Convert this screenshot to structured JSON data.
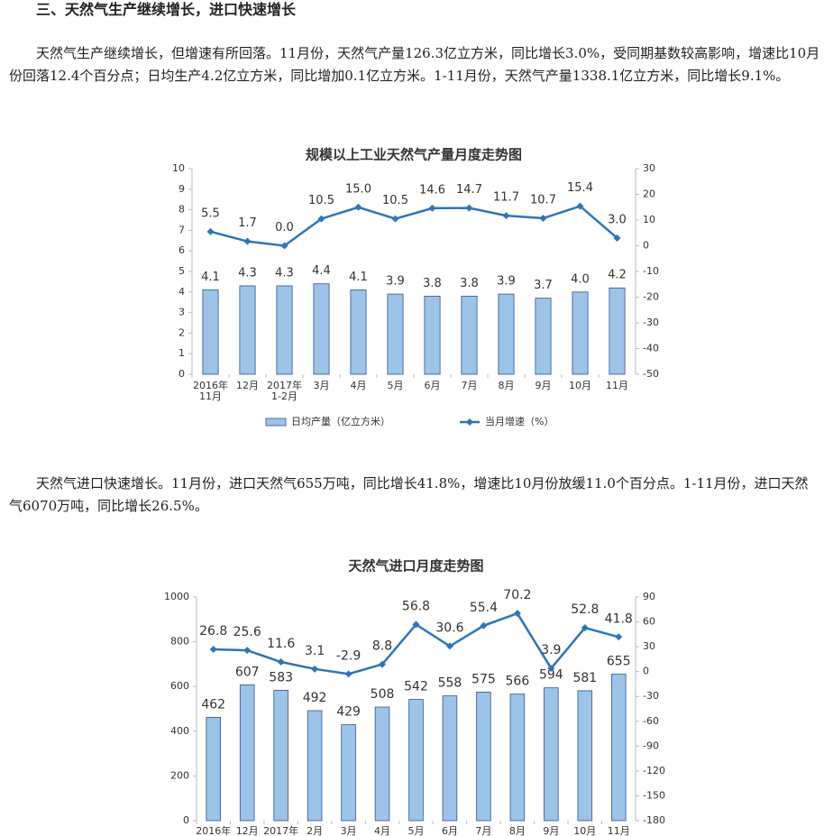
{
  "heading": "三、天然气生产继续增长，进口快速增长",
  "paragraphs": [
    "天然气生产继续增长，但增速有所回落。11月份，天然气产量126.3亿立方米，同比增长3.0%，受同期基数较高影响，增速比10月份回落12.4个百分点；日均生产4.2亿立方米，同比增加0.1亿立方米。1-11月份，天然气产量1338.1亿立方米，同比增长9.1%。",
    "天然气进口快速增长。11月份，进口天然气655万吨，同比增长41.8%，增速比10月份放缓11.0个百分点。1-11月份，进口天然气6070万吨，同比增长26.5%。"
  ],
  "charts": [
    {
      "type": "bar",
      "title": "规模以上工业天然气产量月度走势图",
      "categories": [
        "2016年\n11月",
        "12月",
        "2017年\n1-2月",
        "3月",
        "4月",
        "5月",
        "6月",
        "7月",
        "8月",
        "9月",
        "10月",
        "11月"
      ],
      "series": [
        {
          "name": "日均产量（亿立方米）",
          "type": "bar",
          "color": "#9dc3e6",
          "values": [
            4.1,
            4.3,
            4.3,
            4.4,
            4.1,
            3.9,
            3.8,
            3.8,
            3.9,
            3.7,
            4.0,
            4.2
          ],
          "value_labels": [
            "4.1",
            "4.3",
            "4.3",
            "4.4",
            "4.1",
            "3.9",
            "3.8",
            "3.8",
            "3.9",
            "3.7",
            "4.0",
            "4.2"
          ]
        },
        {
          "name": "当月增速（%）",
          "type": "line",
          "axis": "y2",
          "color": "#2e75b6",
          "values": [
            5.5,
            1.7,
            0.0,
            10.5,
            15.0,
            10.5,
            14.6,
            14.7,
            11.7,
            10.7,
            15.4,
            3.0
          ],
          "value_labels": [
            "5.5",
            "1.7",
            "0.0",
            "10.5",
            "15.0",
            "10.5",
            "14.6",
            "14.7",
            "11.7",
            "10.7",
            "15.4",
            "3.0"
          ]
        }
      ],
      "ylim": [
        0,
        10
      ],
      "yticks": [
        0,
        1,
        2,
        3,
        4,
        5,
        6,
        7,
        8,
        9,
        10
      ],
      "y2lim": [
        -50,
        30
      ],
      "y2ticks": [
        -50,
        -40,
        -30,
        -20,
        -10,
        0,
        10,
        20,
        30
      ],
      "legend": "bottom"
    },
    {
      "type": "bar",
      "title": "天然气进口月度走势图",
      "categories": [
        "2016年",
        "12月",
        "2017年",
        "2月",
        "3月",
        "4月",
        "5月",
        "6月",
        "7月",
        "8月",
        "9月",
        "10月",
        "11月"
      ],
      "series": [
        {
          "type": "bar",
          "color": "#9dc3e6",
          "values": [
            462,
            607,
            583,
            492,
            429,
            508,
            542,
            558,
            575,
            566,
            594,
            581,
            655
          ]
        },
        {
          "type": "line",
          "axis": "y2",
          "color": "#2e75b6",
          "values": [
            26.8,
            25.6,
            11.6,
            3.1,
            -2.9,
            8.8,
            56.8,
            30.6,
            55.4,
            70.2,
            3.9,
            52.8,
            41.8
          ]
        }
      ],
      "ylim": [
        0,
        1000
      ],
      "yticks": [
        0,
        200,
        400,
        600,
        800,
        1000
      ],
      "y2lim": [
        -180,
        90
      ],
      "y2ticks": [
        -180,
        -150,
        -120,
        -90,
        -60,
        -30,
        0,
        30,
        60,
        90
      ]
    }
  ]
}
